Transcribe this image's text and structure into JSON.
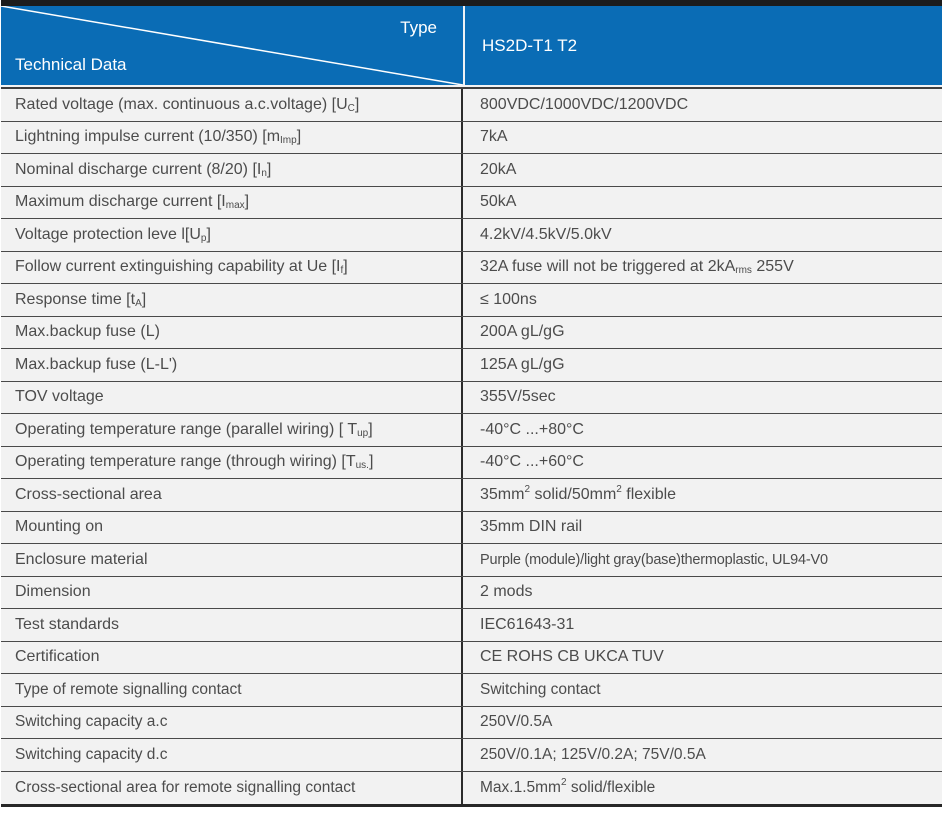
{
  "header": {
    "type_label": "Type",
    "technical_data_label": "Technical Data",
    "model": "HS2D-T1 T2"
  },
  "colors": {
    "header_bg": "#0a6cb5",
    "header_text": "#ffffff",
    "top_bar": "#1c1c1c",
    "row_bg": "#f2f2f2",
    "row_separator": "#4a4a4a",
    "body_text": "#4c4c4c"
  },
  "rows": [
    {
      "label": [
        [
          "t",
          "Rated voltage (max. continuous a.c.voltage) [U"
        ],
        [
          "sub",
          "C"
        ],
        [
          "t",
          "]"
        ]
      ],
      "value": [
        [
          "t",
          "800VDC/1000VDC/1200VDC"
        ]
      ]
    },
    {
      "label": [
        [
          "t",
          "Lightning impulse current (10/350) [m"
        ],
        [
          "sub",
          "Imp"
        ],
        [
          "t",
          "]"
        ]
      ],
      "value": [
        [
          "t",
          "7kA"
        ]
      ]
    },
    {
      "label": [
        [
          "t",
          "Nominal discharge current (8/20) [I"
        ],
        [
          "sub",
          "n"
        ],
        [
          "t",
          "]"
        ]
      ],
      "value": [
        [
          "t",
          "20kA"
        ]
      ]
    },
    {
      "label": [
        [
          "t",
          "Maximum discharge current [I"
        ],
        [
          "sub",
          "max"
        ],
        [
          "t",
          "]"
        ]
      ],
      "value": [
        [
          "t",
          "50kA"
        ]
      ]
    },
    {
      "label": [
        [
          "t",
          "Voltage protection leve l[U"
        ],
        [
          "sub",
          "p"
        ],
        [
          "t",
          "]"
        ]
      ],
      "value": [
        [
          "t",
          "4.2kV/4.5kV/5.0kV"
        ]
      ]
    },
    {
      "label": [
        [
          "t",
          "Follow current extinguishing capability at Ue [I"
        ],
        [
          "sub",
          "f"
        ],
        [
          "t",
          "]"
        ]
      ],
      "value": [
        [
          "t",
          "32A fuse will not be triggered at 2kA"
        ],
        [
          "sub",
          "rms"
        ],
        [
          "t",
          " 255V"
        ]
      ]
    },
    {
      "label": [
        [
          "t",
          "Response time [t"
        ],
        [
          "sub",
          "A"
        ],
        [
          "t",
          "]"
        ]
      ],
      "value": [
        [
          "t",
          "≤ 100ns"
        ]
      ]
    },
    {
      "label": [
        [
          "t",
          "Max.backup fuse (L)"
        ]
      ],
      "value": [
        [
          "t",
          "200A gL/gG"
        ]
      ]
    },
    {
      "label": [
        [
          "t",
          "Max.backup fuse (L-L')"
        ]
      ],
      "value": [
        [
          "t",
          "125A gL/gG"
        ]
      ]
    },
    {
      "label": [
        [
          "t",
          "TOV voltage"
        ]
      ],
      "value": [
        [
          "t",
          "355V/5sec"
        ]
      ]
    },
    {
      "label": [
        [
          "t",
          "Operating temperature range (parallel wiring) [ T"
        ],
        [
          "sub",
          "up"
        ],
        [
          "t",
          "]"
        ]
      ],
      "value": [
        [
          "t",
          "-40°C ...+80°C"
        ]
      ]
    },
    {
      "label": [
        [
          "t",
          "Operating temperature range (through wiring) [T"
        ],
        [
          "sub",
          "us."
        ],
        [
          "t",
          "]"
        ]
      ],
      "value": [
        [
          "t",
          "-40°C ...+60°C"
        ]
      ]
    },
    {
      "label": [
        [
          "t",
          "Cross-sectional area"
        ]
      ],
      "value": [
        [
          "t",
          "35mm"
        ],
        [
          "sup",
          "2"
        ],
        [
          "t",
          " solid/50mm"
        ],
        [
          "sup",
          "2"
        ],
        [
          "t",
          " flexible"
        ]
      ]
    },
    {
      "label": [
        [
          "t",
          "Mounting on"
        ]
      ],
      "value": [
        [
          "t",
          "35mm DIN rail"
        ]
      ]
    },
    {
      "label": [
        [
          "t",
          "Enclosure material"
        ]
      ],
      "value": [
        [
          "t",
          "Purple (module)/light gray(base)thermoplastic, UL94-V0"
        ]
      ]
    },
    {
      "label": [
        [
          "t",
          "Dimension"
        ]
      ],
      "value": [
        [
          "t",
          "2 mods"
        ]
      ]
    },
    {
      "label": [
        [
          "t",
          "Test standards"
        ]
      ],
      "value": [
        [
          "t",
          "IEC61643-31"
        ]
      ]
    },
    {
      "label": [
        [
          "t",
          "Certification"
        ]
      ],
      "value": [
        [
          "t",
          "CE ROHS CB UKCA TUV"
        ]
      ]
    },
    {
      "label": [
        [
          "t",
          "Type of remote signalling contact"
        ]
      ],
      "value": [
        [
          "t",
          "Switching contact"
        ]
      ]
    },
    {
      "label": [
        [
          "t",
          "Switching capacity a.c"
        ]
      ],
      "value": [
        [
          "t",
          "250V/0.5A"
        ]
      ]
    },
    {
      "label": [
        [
          "t",
          "Switching capacity d.c"
        ]
      ],
      "value": [
        [
          "t",
          "250V/0.1A; 125V/0.2A; 75V/0.5A"
        ]
      ]
    },
    {
      "label": [
        [
          "t",
          "Cross-sectional area for remote signalling contact"
        ]
      ],
      "value": [
        [
          "t",
          "Max.1.5mm"
        ],
        [
          "sup",
          "2"
        ],
        [
          "t",
          " solid/flexible"
        ]
      ]
    }
  ]
}
